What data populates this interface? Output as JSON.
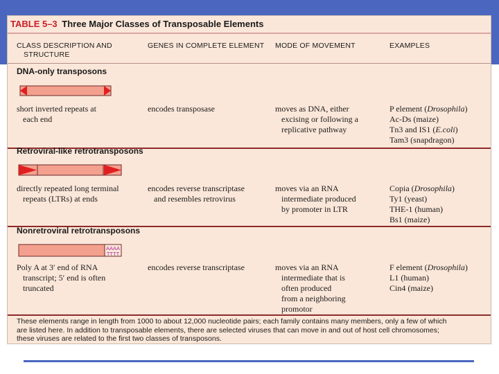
{
  "slide": {
    "accent_color": "#4a66bf"
  },
  "table": {
    "label": "TABLE 5–3",
    "title": "Three Major Classes of Transposable Elements",
    "header_color": "#c81e28",
    "columns": [
      [
        "CLASS DESCRIPTION AND",
        "STRUCTURE"
      ],
      [
        "GENES IN COMPLETE ELEMENT"
      ],
      [
        "MODE OF MOVEMENT"
      ],
      [
        "EXAMPLES"
      ]
    ],
    "sections": [
      {
        "title": "DNA-only transposons",
        "diagram_type": "inverted-repeats",
        "structure": [
          "short inverted repeats at",
          "each end"
        ],
        "genes": [
          "encodes transposase"
        ],
        "movement": [
          "moves as DNA, either",
          "excising or following a",
          "replicative pathway"
        ],
        "examples": [
          {
            "name": "P element (",
            "italic": "Drosophila",
            "after": ")"
          },
          {
            "name": "Ac-Ds (maize)",
            "italic": "",
            "after": ""
          },
          {
            "name": "Tn3 and IS1 (",
            "italic": "E.coli",
            "after": ")"
          },
          {
            "name": "Tam3 (snapdragon)",
            "italic": "",
            "after": ""
          }
        ]
      },
      {
        "title": "Retroviral-like retrotransposons",
        "diagram_type": "direct-repeats",
        "structure": [
          "directly repeated long terminal",
          "repeats (LTRs) at ends"
        ],
        "genes": [
          "encodes reverse transcriptase",
          "and resembles retrovirus"
        ],
        "movement": [
          "moves via an RNA",
          "intermediate produced",
          "by promoter in LTR"
        ],
        "examples": [
          {
            "name": "Copia (",
            "italic": "Drosophila",
            "after": ")"
          },
          {
            "name": "Ty1 (yeast)",
            "italic": "",
            "after": ""
          },
          {
            "name": "THE-1 (human)",
            "italic": "",
            "after": ""
          },
          {
            "name": "Bs1 (maize)",
            "italic": "",
            "after": ""
          }
        ]
      },
      {
        "title": "Nonretroviral retrotransposons",
        "diagram_type": "poly-a",
        "diagram_text": {
          "top": "AAAA",
          "bottom": "TTTT"
        },
        "structure": [
          "Poly A at 3′ end of RNA",
          "transcript; 5′ end is often",
          "truncated"
        ],
        "genes": [
          "encodes reverse transcriptase"
        ],
        "movement": [
          "moves via an RNA",
          "intermediate that is",
          "often produced",
          "from a neighboring",
          "promotor"
        ],
        "examples": [
          {
            "name": "F element (",
            "italic": "Drosophila",
            "after": ")"
          },
          {
            "name": "L1 (human)",
            "italic": "",
            "after": ""
          },
          {
            "name": "Cin4 (maize)",
            "italic": "",
            "after": ""
          }
        ]
      }
    ],
    "footnote": [
      "These elements range in length from 1000 to about 12,000 nucleotide pairs; each family contains many members, only a few of which",
      "are listed here. In addition to transposable elements, there are selected viruses that can move in and out of host cell chromosomes;",
      "these viruses are related to the first two classes of transposons."
    ],
    "colors": {
      "card": "#fbe7d9",
      "element_fill": "#f4a08e",
      "repeat_red": "#e02020",
      "rule": "#8d2b2b"
    }
  }
}
